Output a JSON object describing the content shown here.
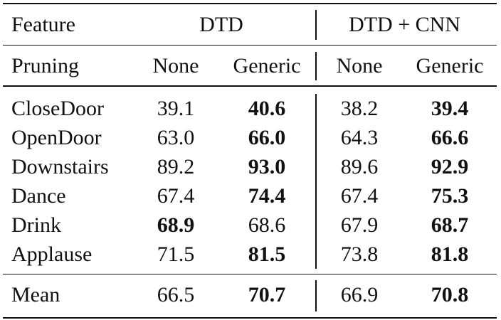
{
  "table": {
    "group_header": [
      "Feature",
      "DTD",
      "DTD + CNN"
    ],
    "columns": [
      "Pruning",
      "None",
      "Generic",
      "None",
      "Generic"
    ],
    "rows": [
      [
        "CloseDoor",
        "39.1",
        "40.6",
        "38.2",
        "39.4"
      ],
      [
        "OpenDoor",
        "63.0",
        "66.0",
        "64.3",
        "66.6"
      ],
      [
        "Downstairs",
        "89.2",
        "93.0",
        "89.6",
        "92.9"
      ],
      [
        "Dance",
        "67.4",
        "74.4",
        "67.4",
        "75.3"
      ],
      [
        "Drink",
        "68.9",
        "68.6",
        "67.9",
        "68.7"
      ],
      [
        "Applause",
        "71.5",
        "81.5",
        "73.8",
        "81.8"
      ]
    ],
    "mean": [
      "Mean",
      "66.5",
      "70.7",
      "66.9",
      "70.8"
    ]
  }
}
